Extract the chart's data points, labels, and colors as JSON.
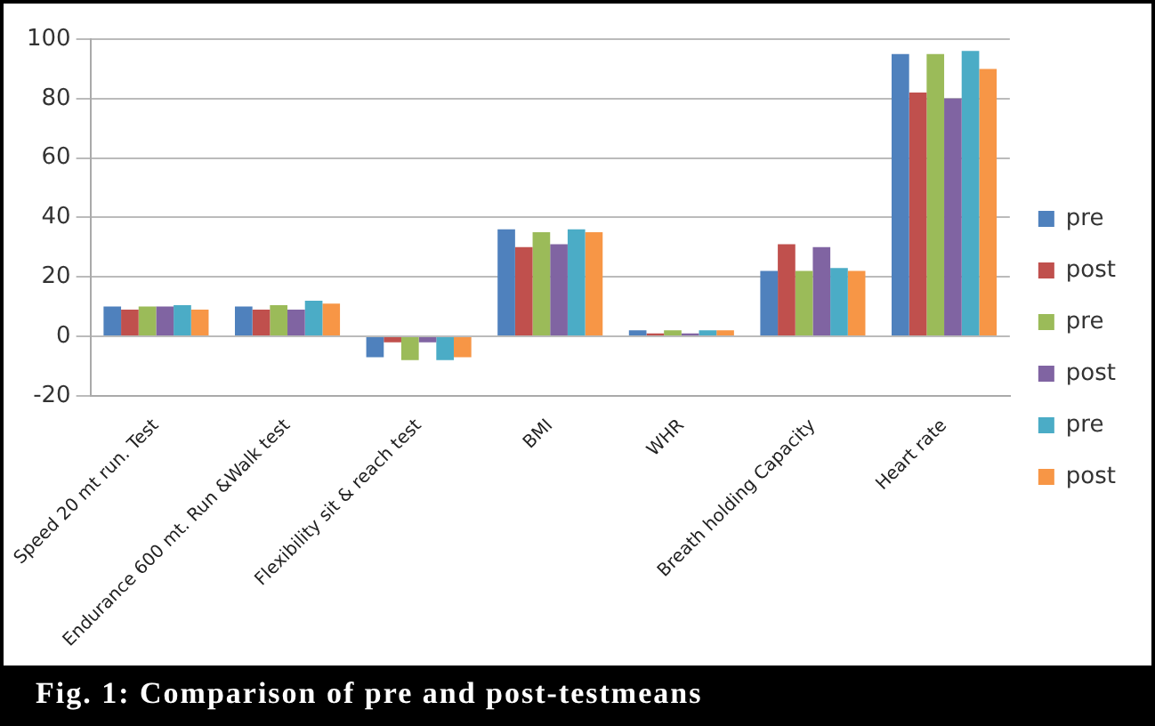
{
  "chart_data": {
    "type": "bar",
    "categories": [
      "Speed 20 mt run. Test",
      "Endurance 600 mt. Run &Walk test",
      "Flexibility sit & reach test",
      "BMI",
      "WHR",
      "Breath holding Capacity",
      "Heart rate"
    ],
    "series": [
      {
        "name": "pre",
        "color": "#4f81bd",
        "values": [
          10,
          10,
          -7,
          36,
          2,
          22,
          95
        ]
      },
      {
        "name": "post",
        "color": "#c0504d",
        "values": [
          9,
          9,
          -2,
          30,
          1,
          31,
          82
        ]
      },
      {
        "name": "pre",
        "color": "#9bbb59",
        "values": [
          10,
          10.5,
          -8,
          35,
          2,
          22,
          95
        ]
      },
      {
        "name": "post",
        "color": "#8064a2",
        "values": [
          10,
          9,
          -2,
          31,
          1,
          30,
          80
        ]
      },
      {
        "name": "pre",
        "color": "#4bacc6",
        "values": [
          10.5,
          12,
          -8,
          36,
          2,
          23,
          96
        ]
      },
      {
        "name": "post",
        "color": "#f79646",
        "values": [
          9,
          11,
          -7,
          35,
          2,
          22,
          90
        ]
      }
    ],
    "ylim": [
      -20,
      100
    ],
    "yticks": [
      -20,
      0,
      20,
      40,
      60,
      80,
      100
    ],
    "grid": "y",
    "legend": "right",
    "annotations": [
      "Fig. 1: Comparison of pre and post-testmeans"
    ]
  }
}
